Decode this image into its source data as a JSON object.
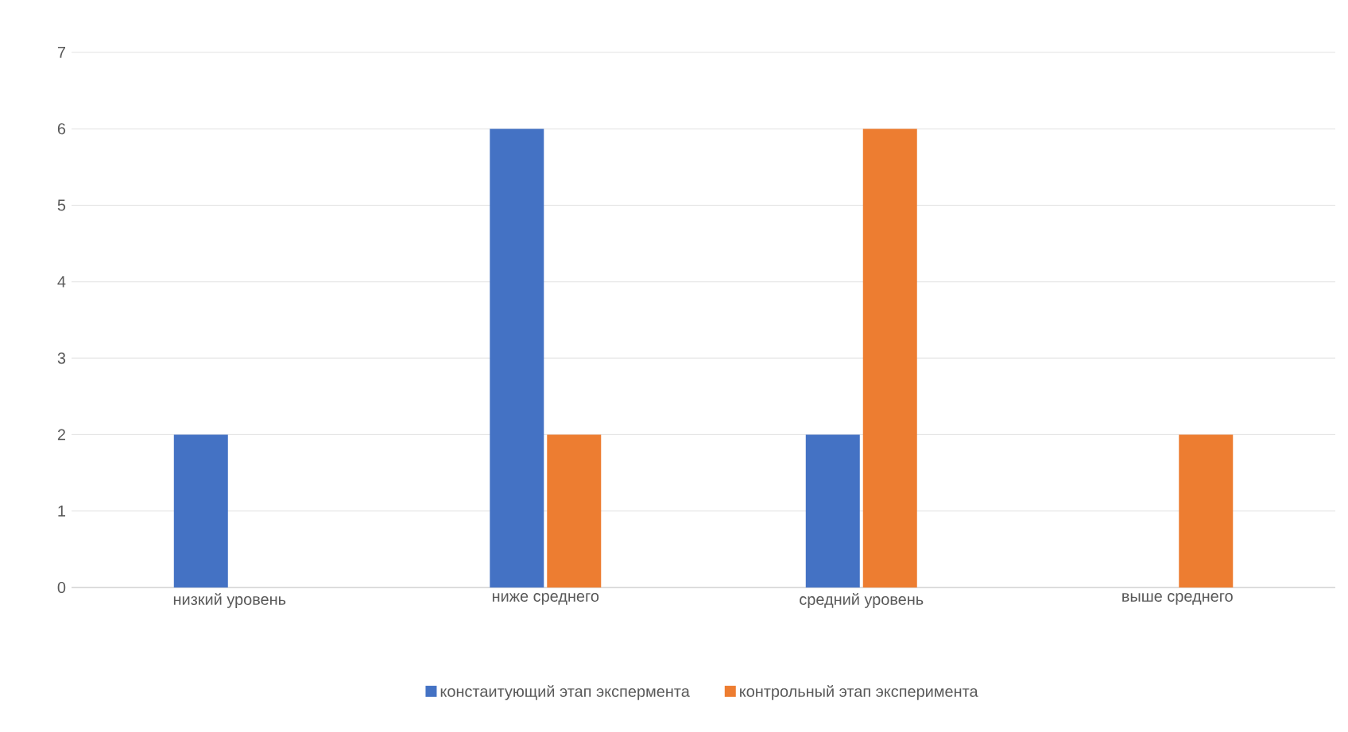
{
  "chart_data": {
    "type": "bar",
    "categories": [
      "низкий уровень",
      "ниже среднего",
      "средний уровень",
      "выше среднего"
    ],
    "series": [
      {
        "name": "констаитующий этап экспермента",
        "color": "#4472c4",
        "values": [
          2,
          6,
          2,
          0
        ]
      },
      {
        "name": "контрольный этап эксперимента",
        "color": "#ed7d31",
        "values": [
          0,
          2,
          6,
          2
        ]
      }
    ],
    "ylim": [
      0,
      7
    ],
    "yticks": [
      0,
      1,
      2,
      3,
      4,
      5,
      6,
      7
    ],
    "grid": "y",
    "legend": "bottom"
  }
}
